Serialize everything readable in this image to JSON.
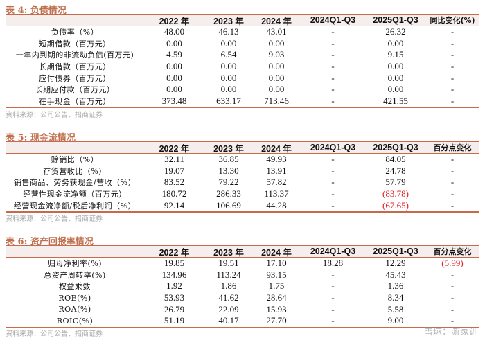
{
  "columns": [
    "2022 年",
    "2023 年",
    "2024 年",
    "2024Q1-Q3",
    "2025Q1-Q3"
  ],
  "source": "资料来源：公司公告、招商证券",
  "accent_color": "#c8694c",
  "negative_color": "#e02020",
  "table4": {
    "title": "表 4:  负债情况",
    "last_col": "同比变化(%)",
    "rows": [
      {
        "label": "负债率（%）",
        "v": [
          "48.00",
          "46.13",
          "43.01",
          "-",
          "26.32",
          "-"
        ]
      },
      {
        "label": "短期借款（百万元）",
        "v": [
          "0.00",
          "0.00",
          "0.00",
          "-",
          "0.00",
          "-"
        ]
      },
      {
        "label": "一年内到期的非流动负债(百万元)",
        "v": [
          "4.59",
          "6.54",
          "9.03",
          "-",
          "9.15",
          "-"
        ]
      },
      {
        "label": "长期借款（百万元）",
        "v": [
          "0.00",
          "0.00",
          "0.00",
          "-",
          "0.00",
          "-"
        ]
      },
      {
        "label": "应付债券（百万元）",
        "v": [
          "0.00",
          "0.00",
          "0.00",
          "-",
          "0.00",
          "-"
        ]
      },
      {
        "label": "长期应付款（百万元）",
        "v": [
          "0.00",
          "0.00",
          "0.00",
          "-",
          "0.00",
          "-"
        ]
      },
      {
        "label": "在手现金（百万元）",
        "v": [
          "373.48",
          "633.17",
          "713.46",
          "-",
          "421.55",
          "-"
        ]
      }
    ]
  },
  "table5": {
    "title": "表 5:  现金流情况",
    "last_col": "百分点变化",
    "rows": [
      {
        "label": "赊销比（%）",
        "v": [
          "32.11",
          "36.85",
          "49.93",
          "-",
          "84.05",
          "-"
        ]
      },
      {
        "label": "存货营收比（%）",
        "v": [
          "19.07",
          "13.30",
          "13.91",
          "-",
          "24.78",
          "-"
        ]
      },
      {
        "label": "销售商品、劳务获现金/营收（%）",
        "v": [
          "83.52",
          "79.22",
          "57.82",
          "-",
          "57.79",
          "-"
        ]
      },
      {
        "label": "经营性现金流净额（百万元）",
        "v": [
          "180.72",
          "286.33",
          "113.37",
          "-",
          "(83.78)",
          "-"
        ],
        "neg": [
          4
        ]
      },
      {
        "label": "经营现金流净额/税后净利润（%）",
        "v": [
          "92.14",
          "106.69",
          "44.28",
          "-",
          "(67.65)",
          "-"
        ],
        "neg": [
          4
        ]
      }
    ]
  },
  "table6": {
    "title": "表 6:  资产回报率情况",
    "last_col": "百分点变化",
    "rows": [
      {
        "label": "归母净利率(%)",
        "v": [
          "19.85",
          "19.51",
          "17.10",
          "18.28",
          "12.29",
          "(5.99)"
        ],
        "neg": [
          5
        ]
      },
      {
        "label": "总资产周转率(%)",
        "v": [
          "134.96",
          "113.24",
          "93.15",
          "-",
          "45.43",
          "-"
        ]
      },
      {
        "label": "权益乘数",
        "v": [
          "1.92",
          "1.86",
          "1.75",
          "-",
          "1.36",
          "-"
        ]
      },
      {
        "label": "ROE(%)",
        "v": [
          "53.93",
          "41.62",
          "28.64",
          "-",
          "8.34",
          "-"
        ]
      },
      {
        "label": "ROA(%)",
        "v": [
          "26.79",
          "22.09",
          "15.93",
          "-",
          "5.58",
          "-"
        ]
      },
      {
        "label": "ROIC(%)",
        "v": [
          "51.19",
          "40.17",
          "27.70",
          "-",
          "9.00",
          "-"
        ]
      }
    ]
  },
  "watermark": "雪球：游家训"
}
